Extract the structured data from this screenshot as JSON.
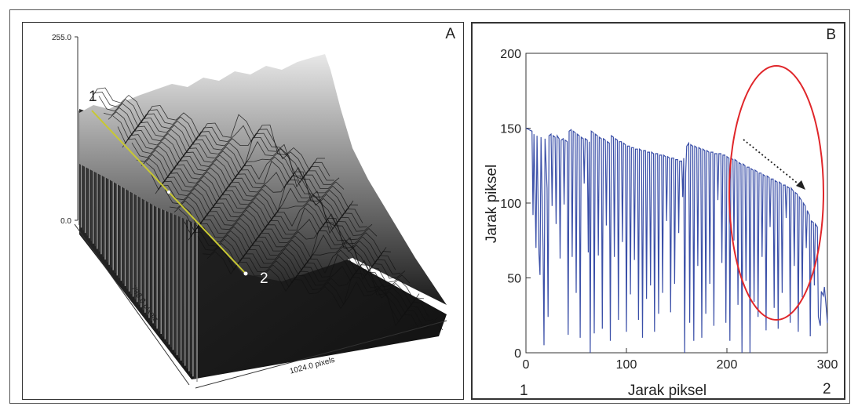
{
  "figure": {
    "panel_a": {
      "label": "A",
      "z_max_label": "255.0",
      "z_min_label": "0.0",
      "y_extent_label": "768.0 pixels",
      "x_extent_label": "1024.0 pixels",
      "point_start_label": "1",
      "point_end_label": "2",
      "profile_line_color": "#c8c832"
    },
    "panel_b": {
      "label": "B",
      "ellipse_color": "#e0262a",
      "arrow_style": "dotted"
    }
  },
  "chart_data": {
    "type": "line",
    "title": "",
    "xlabel": "Jarak piksel",
    "ylabel": "Jarak piksel",
    "xlim": [
      0,
      300
    ],
    "ylim": [
      0,
      200
    ],
    "xticks": [
      "0",
      "100",
      "200",
      "300"
    ],
    "yticks": [
      "0",
      "50",
      "100",
      "150",
      "200"
    ],
    "start_marker": "1",
    "end_marker": "2",
    "line_color": "#3a4fa8",
    "grid": false,
    "series": [
      {
        "values": [
          [
            0,
            150
          ],
          [
            3,
            149
          ],
          [
            6,
            148
          ],
          [
            7,
            92
          ],
          [
            8,
            146
          ],
          [
            10,
            70
          ],
          [
            11,
            145
          ],
          [
            13,
            66
          ],
          [
            14,
            52
          ],
          [
            15,
            144
          ],
          [
            17,
            70
          ],
          [
            18,
            5
          ],
          [
            19,
            143
          ],
          [
            21,
            110
          ],
          [
            22,
            24
          ],
          [
            23,
            145
          ],
          [
            25,
            146
          ],
          [
            26,
            98
          ],
          [
            27,
            145
          ],
          [
            29,
            144
          ],
          [
            30,
            86
          ],
          [
            31,
            145
          ],
          [
            33,
            143
          ],
          [
            34,
            63
          ],
          [
            35,
            142
          ],
          [
            37,
            143
          ],
          [
            38,
            99
          ],
          [
            39,
            142
          ],
          [
            41,
            141
          ],
          [
            42,
            12
          ],
          [
            43,
            148
          ],
          [
            45,
            149
          ],
          [
            46,
            64
          ],
          [
            47,
            148
          ],
          [
            49,
            147
          ],
          [
            50,
            40
          ],
          [
            51,
            146
          ],
          [
            53,
            145
          ],
          [
            54,
            10
          ],
          [
            55,
            144
          ],
          [
            57,
            143
          ],
          [
            58,
            113
          ],
          [
            59,
            143
          ],
          [
            61,
            142
          ],
          [
            62,
            67
          ],
          [
            63,
            141
          ],
          [
            64,
            0
          ],
          [
            65,
            148
          ],
          [
            67,
            147
          ],
          [
            68,
            13
          ],
          [
            69,
            146
          ],
          [
            71,
            145
          ],
          [
            72,
            65
          ],
          [
            73,
            144
          ],
          [
            75,
            143
          ],
          [
            76,
            16
          ],
          [
            77,
            143
          ],
          [
            79,
            142
          ],
          [
            80,
            85
          ],
          [
            81,
            141
          ],
          [
            83,
            140
          ],
          [
            84,
            8
          ],
          [
            85,
            145
          ],
          [
            87,
            144
          ],
          [
            88,
            64
          ],
          [
            89,
            143
          ],
          [
            91,
            142
          ],
          [
            92,
            22
          ],
          [
            93,
            141
          ],
          [
            95,
            141
          ],
          [
            96,
            74
          ],
          [
            97,
            140
          ],
          [
            99,
            139
          ],
          [
            100,
            14
          ],
          [
            101,
            138
          ],
          [
            103,
            138
          ],
          [
            104,
            39
          ],
          [
            105,
            137
          ],
          [
            107,
            137
          ],
          [
            108,
            62
          ],
          [
            109,
            136
          ],
          [
            111,
            136
          ],
          [
            112,
            22
          ],
          [
            113,
            136
          ],
          [
            115,
            135
          ],
          [
            116,
            10
          ],
          [
            117,
            135
          ],
          [
            119,
            135
          ],
          [
            120,
            36
          ],
          [
            121,
            134
          ],
          [
            123,
            134
          ],
          [
            124,
            45
          ],
          [
            125,
            134
          ],
          [
            127,
            133
          ],
          [
            128,
            14
          ],
          [
            129,
            133
          ],
          [
            131,
            133
          ],
          [
            132,
            26
          ],
          [
            133,
            132
          ],
          [
            135,
            132
          ],
          [
            136,
            40
          ],
          [
            137,
            132
          ],
          [
            139,
            131
          ],
          [
            140,
            88
          ],
          [
            141,
            131
          ],
          [
            143,
            130
          ],
          [
            144,
            27
          ],
          [
            145,
            130
          ],
          [
            147,
            130
          ],
          [
            148,
            46
          ],
          [
            149,
            129
          ],
          [
            151,
            129
          ],
          [
            152,
            80
          ],
          [
            153,
            128
          ],
          [
            155,
            128
          ],
          [
            156,
            104
          ],
          [
            157,
            130
          ],
          [
            158,
            0
          ],
          [
            159,
            120
          ],
          [
            160,
            138
          ],
          [
            162,
            140
          ],
          [
            163,
            20
          ],
          [
            164,
            139
          ],
          [
            166,
            138
          ],
          [
            167,
            8
          ],
          [
            168,
            138
          ],
          [
            170,
            137
          ],
          [
            171,
            58
          ],
          [
            172,
            137
          ],
          [
            174,
            136
          ],
          [
            175,
            10
          ],
          [
            176,
            136
          ],
          [
            178,
            135
          ],
          [
            179,
            26
          ],
          [
            180,
            135
          ],
          [
            182,
            134
          ],
          [
            183,
            46
          ],
          [
            184,
            134
          ],
          [
            186,
            134
          ],
          [
            187,
            18
          ],
          [
            188,
            133
          ],
          [
            190,
            133
          ],
          [
            191,
            102
          ],
          [
            192,
            133
          ],
          [
            194,
            133
          ],
          [
            195,
            60
          ],
          [
            196,
            132
          ],
          [
            198,
            132
          ],
          [
            199,
            20
          ],
          [
            200,
            131
          ],
          [
            202,
            130
          ],
          [
            203,
            8
          ],
          [
            204,
            130
          ],
          [
            206,
            129
          ],
          [
            207,
            75
          ],
          [
            208,
            129
          ],
          [
            210,
            128
          ],
          [
            211,
            32
          ],
          [
            212,
            127
          ],
          [
            214,
            126
          ],
          [
            215,
            0
          ],
          [
            216,
            126
          ],
          [
            218,
            125
          ],
          [
            219,
            48
          ],
          [
            220,
            124
          ],
          [
            222,
            124
          ],
          [
            223,
            0
          ],
          [
            224,
            123
          ],
          [
            226,
            122
          ],
          [
            227,
            34
          ],
          [
            228,
            122
          ],
          [
            230,
            121
          ],
          [
            231,
            24
          ],
          [
            232,
            120
          ],
          [
            234,
            120
          ],
          [
            235,
            64
          ],
          [
            236,
            119
          ],
          [
            238,
            118
          ],
          [
            239,
            15
          ],
          [
            240,
            118
          ],
          [
            242,
            117
          ],
          [
            243,
            84
          ],
          [
            244,
            116
          ],
          [
            246,
            116
          ],
          [
            247,
            30
          ],
          [
            248,
            115
          ],
          [
            250,
            114
          ],
          [
            251,
            16
          ],
          [
            252,
            114
          ],
          [
            254,
            113
          ],
          [
            255,
            40
          ],
          [
            256,
            112
          ],
          [
            258,
            112
          ],
          [
            259,
            90
          ],
          [
            260,
            111
          ],
          [
            262,
            110
          ],
          [
            263,
            20
          ],
          [
            264,
            110
          ],
          [
            266,
            108
          ],
          [
            267,
            58
          ],
          [
            268,
            107
          ],
          [
            270,
            106
          ],
          [
            271,
            14
          ],
          [
            272,
            104
          ],
          [
            274,
            102
          ],
          [
            275,
            37
          ],
          [
            276,
            100
          ],
          [
            278,
            98
          ],
          [
            279,
            70
          ],
          [
            280,
            95
          ],
          [
            282,
            92
          ],
          [
            283,
            11
          ],
          [
            284,
            88
          ],
          [
            286,
            87
          ],
          [
            287,
            45
          ],
          [
            288,
            86
          ],
          [
            290,
            84
          ],
          [
            291,
            24
          ],
          [
            293,
            18
          ],
          [
            294,
            41
          ],
          [
            296,
            38
          ],
          [
            297,
            44
          ],
          [
            299,
            29
          ],
          [
            300,
            20
          ]
        ]
      }
    ]
  }
}
